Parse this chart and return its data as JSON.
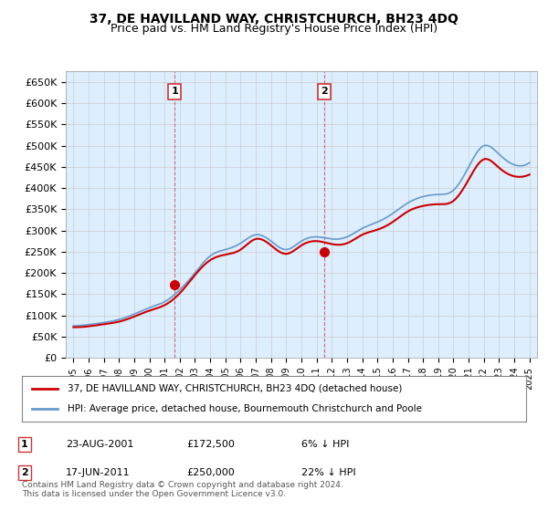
{
  "title": "37, DE HAVILLAND WAY, CHRISTCHURCH, BH23 4DQ",
  "subtitle": "Price paid vs. HM Land Registry's House Price Index (HPI)",
  "sale1_date": "2001-08-23",
  "sale1_label": "23-AUG-2001",
  "sale1_price": 172500,
  "sale1_hpi_diff": "6% ↓ HPI",
  "sale2_date": "2011-06-17",
  "sale2_label": "17-JUN-2011",
  "sale2_price": 250000,
  "sale2_hpi_diff": "22% ↓ HPI",
  "legend_line1": "37, DE HAVILLAND WAY, CHRISTCHURCH, BH23 4DQ (detached house)",
  "legend_line2": "HPI: Average price, detached house, Bournemouth Christchurch and Poole",
  "footer": "Contains HM Land Registry data © Crown copyright and database right 2024.\nThis data is licensed under the Open Government Licence v3.0.",
  "line_color_sale": "#cc0000",
  "line_color_hpi": "#6699cc",
  "background_color": "#ddeeff",
  "grid_color": "#cc3333",
  "ylim": [
    0,
    675000
  ],
  "yticks": [
    0,
    50000,
    100000,
    150000,
    200000,
    250000,
    300000,
    350000,
    400000,
    450000,
    500000,
    550000,
    600000,
    650000
  ],
  "hpi_data": {
    "years": [
      1995,
      1996,
      1997,
      1998,
      1999,
      2000,
      2001,
      2002,
      2003,
      2004,
      2005,
      2006,
      2007,
      2008,
      2009,
      2010,
      2011,
      2012,
      2013,
      2014,
      2015,
      2016,
      2017,
      2018,
      2019,
      2020,
      2021,
      2022,
      2023,
      2024,
      2025
    ],
    "values": [
      75000,
      78000,
      83000,
      90000,
      103000,
      118000,
      132000,
      160000,
      200000,
      240000,
      255000,
      270000,
      290000,
      275000,
      255000,
      275000,
      285000,
      280000,
      285000,
      305000,
      320000,
      340000,
      365000,
      380000,
      385000,
      395000,
      450000,
      500000,
      480000,
      455000,
      460000
    ]
  },
  "sale_line_data": {
    "years": [
      1995,
      1996,
      1997,
      1998,
      1999,
      2000,
      2001,
      2002,
      2003,
      2004,
      2005,
      2006,
      2007,
      2008,
      2009,
      2010,
      2011,
      2012,
      2013,
      2014,
      2015,
      2016,
      2017,
      2018,
      2019,
      2020,
      2021,
      2022,
      2023,
      2024,
      2025
    ],
    "values": [
      72000,
      74000,
      79000,
      85000,
      97000,
      111000,
      124000,
      152000,
      195000,
      230000,
      243000,
      255000,
      280000,
      265000,
      245000,
      265000,
      275000,
      268000,
      270000,
      290000,
      302000,
      320000,
      345000,
      358000,
      362000,
      370000,
      420000,
      468000,
      448000,
      428000,
      432000
    ]
  }
}
